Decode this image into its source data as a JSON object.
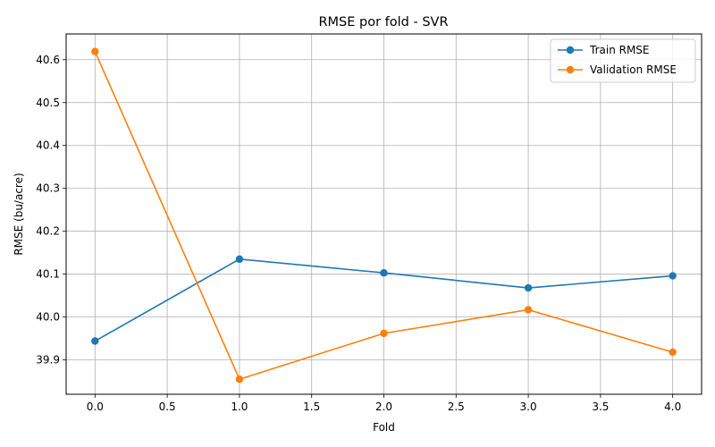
{
  "chart_data": {
    "type": "line",
    "title": "RMSE por fold - SVR",
    "xlabel": "Fold",
    "ylabel": "RMSE (bu/acre)",
    "x": [
      0,
      1,
      2,
      3,
      4
    ],
    "xlim": [
      -0.2,
      4.2
    ],
    "ylim": [
      39.82,
      40.66
    ],
    "x_ticks": [
      0.0,
      0.5,
      1.0,
      1.5,
      2.0,
      2.5,
      3.0,
      3.5,
      4.0
    ],
    "x_tick_labels": [
      "0.0",
      "0.5",
      "1.0",
      "1.5",
      "2.0",
      "2.5",
      "3.0",
      "3.5",
      "4.0"
    ],
    "y_ticks": [
      39.9,
      40.0,
      40.1,
      40.2,
      40.3,
      40.4,
      40.5,
      40.6
    ],
    "y_tick_labels": [
      "39.9",
      "40.0",
      "40.1",
      "40.2",
      "40.3",
      "40.4",
      "40.5",
      "40.6"
    ],
    "grid": true,
    "legend_position": "top-right",
    "series": [
      {
        "name": "Train RMSE",
        "color": "#1f77b4",
        "marker": "circle",
        "values": [
          39.944,
          40.135,
          40.103,
          40.068,
          40.096
        ]
      },
      {
        "name": "Validation RMSE",
        "color": "#ff7f0e",
        "marker": "circle",
        "values": [
          40.619,
          39.855,
          39.962,
          40.017,
          39.918
        ]
      }
    ]
  }
}
